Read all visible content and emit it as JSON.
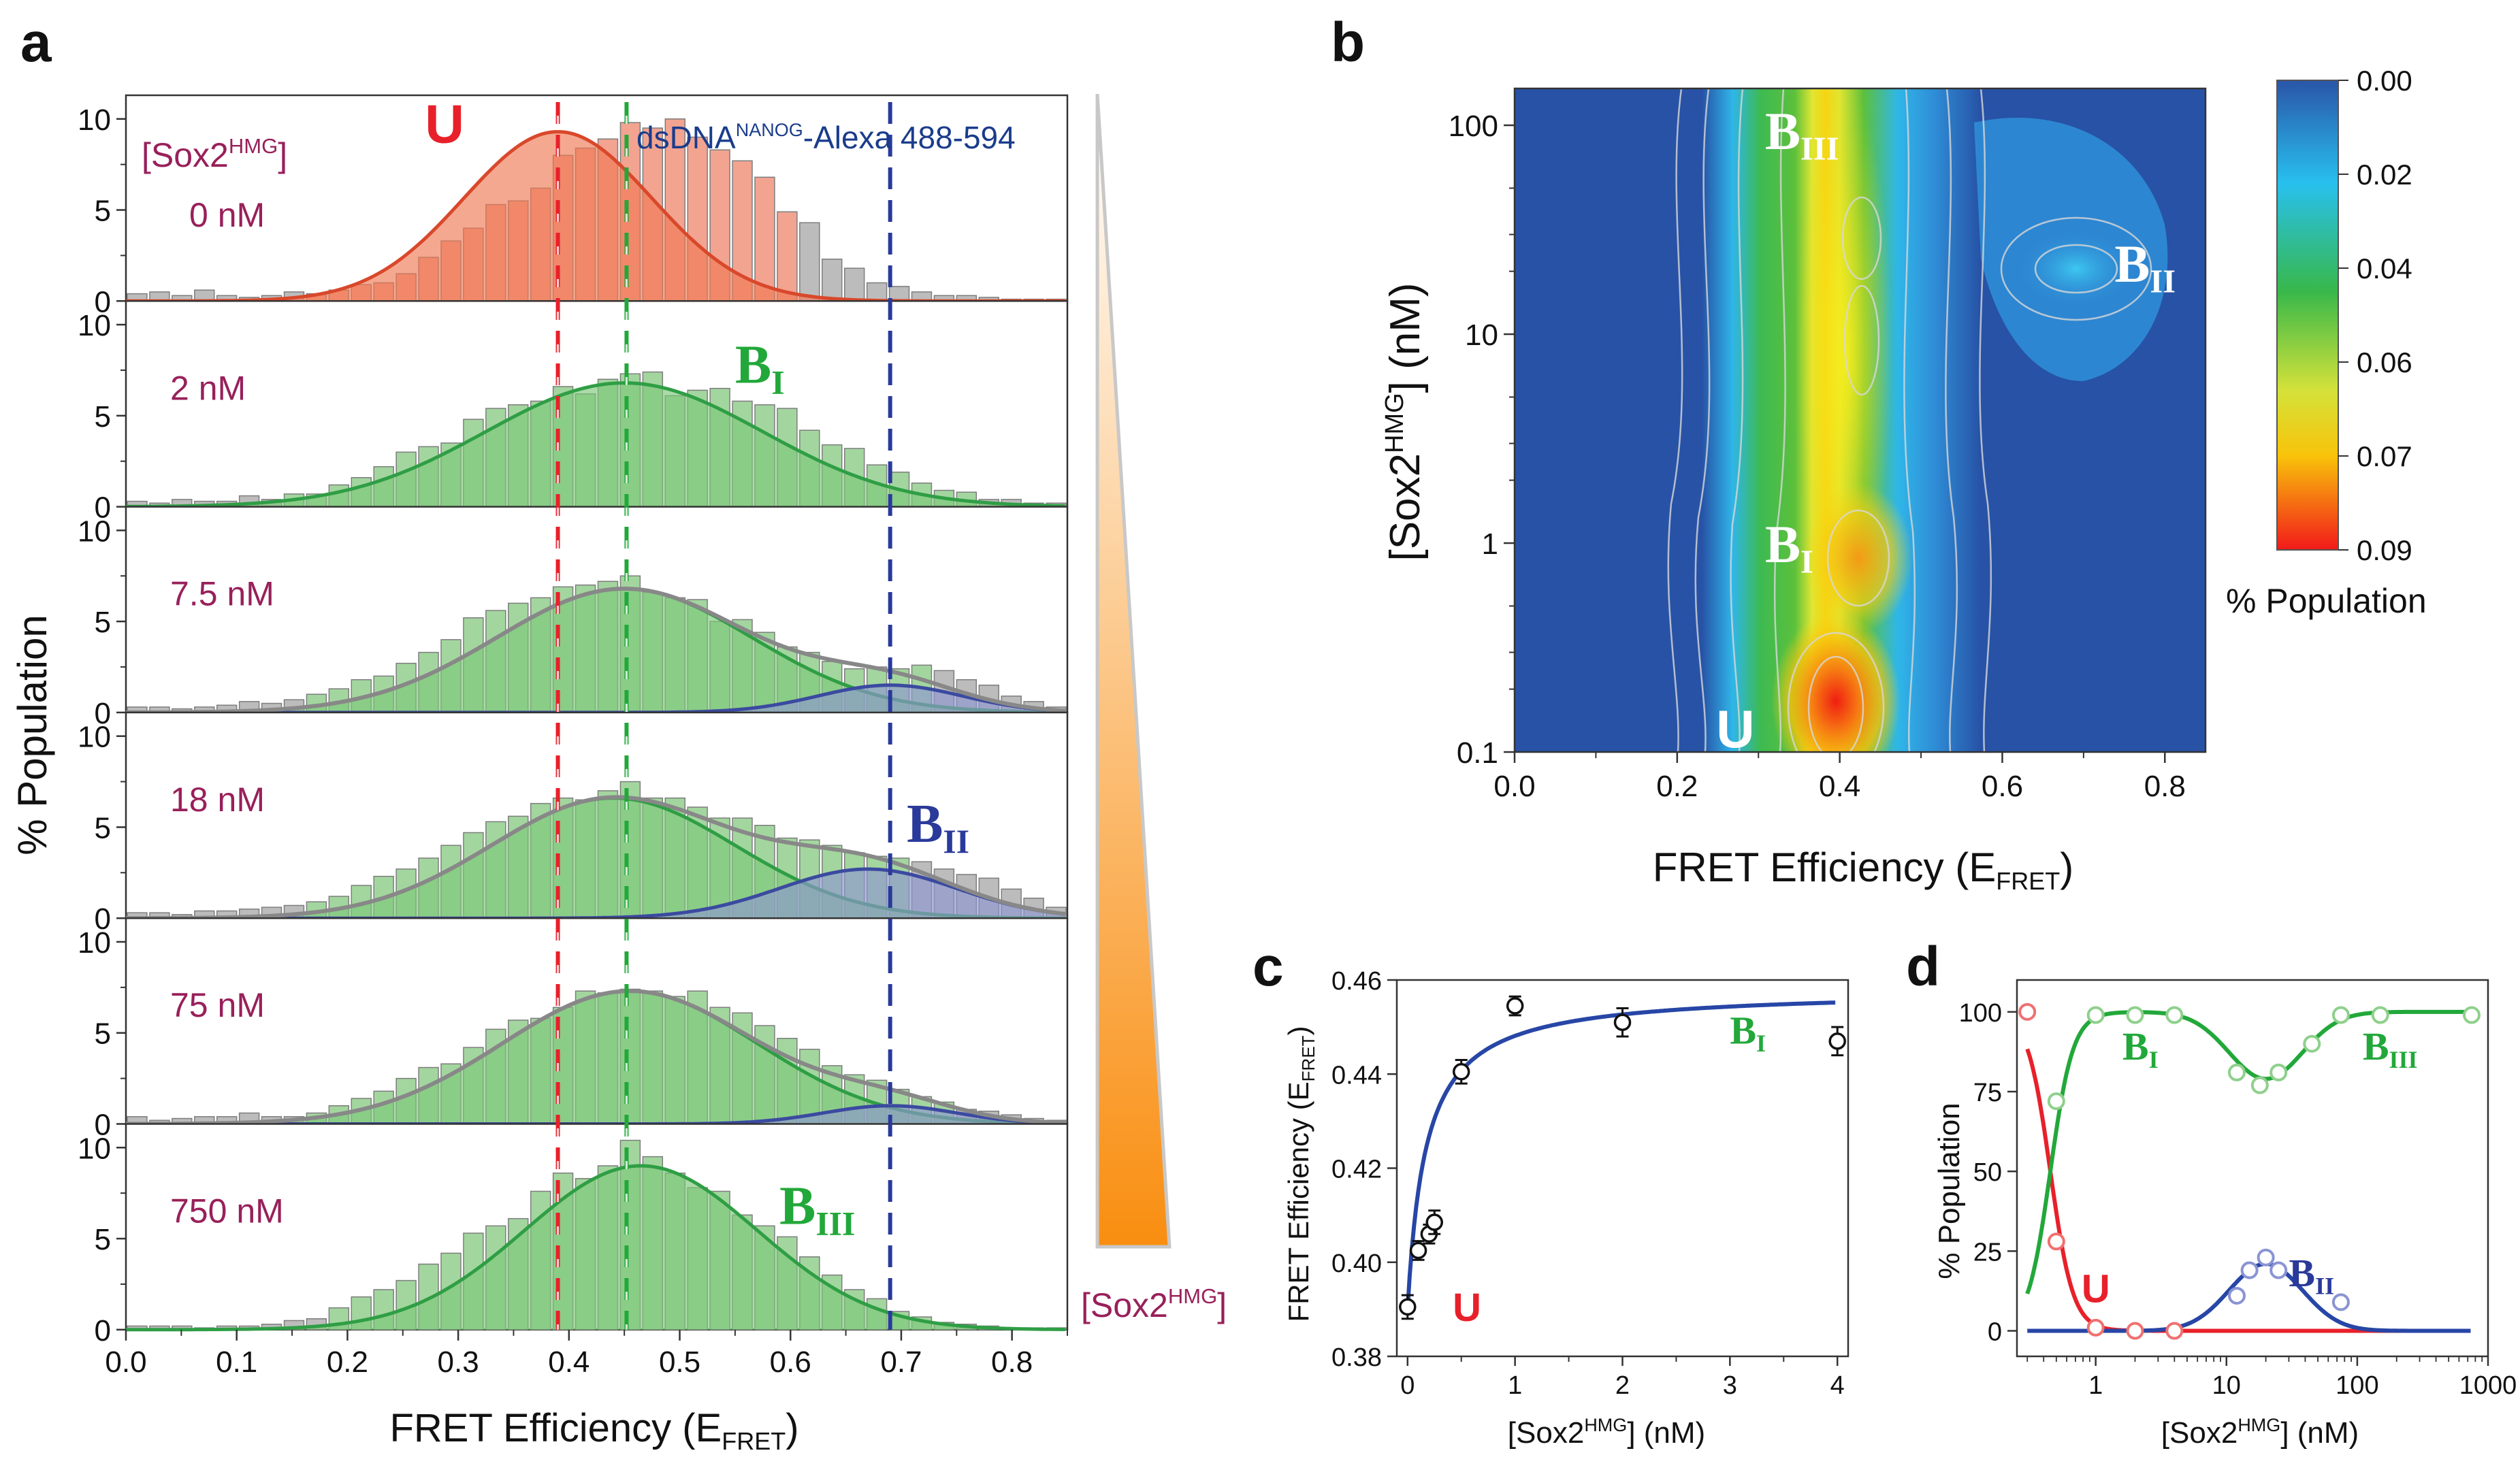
{
  "colors": {
    "u_red": "#e8202a",
    "b1_green": "#22a83a",
    "b2_blue": "#2a3a9a",
    "orange_fill": "#f07a55",
    "green_fill": "#7cc87a",
    "blue_fill": "#8d97d0",
    "gray_bar": "#b9b9b9",
    "dark_magenta": "#98205a",
    "navy": "#1a3c8c",
    "fit_blue": "#2746a6"
  },
  "chart_data": [
    {
      "panel": "a",
      "type": "bar",
      "ylabel": "% Population",
      "xlabel": "FRET Efficiency (E",
      "xlabel_sub": "FRET",
      "xlabel_end": ")",
      "xlim": [
        0.0,
        0.85
      ],
      "ylim": [
        0,
        11
      ],
      "xticks": [
        "0.0",
        "0.1",
        "0.2",
        "0.3",
        "0.4",
        "0.5",
        "0.6",
        "0.7",
        "0.8"
      ],
      "yticks": [
        "0",
        "5",
        "10"
      ],
      "conc_header": "[Sox2",
      "conc_header_sup": "HMG",
      "conc_header_end": "]",
      "dna_label": "dsDNA",
      "dna_label_sup": "NANOG",
      "dna_label_end": "-Alexa 488-594",
      "gradient_label": "[Sox2",
      "gradient_label_sup": "HMG",
      "gradient_label_end": "]",
      "reference_lines": [
        {
          "x": 0.39,
          "color": "u_red"
        },
        {
          "x": 0.452,
          "color": "b1_green"
        },
        {
          "x": 0.69,
          "color": "b2_blue"
        }
      ],
      "subpanels": [
        {
          "concentration": "0 nM",
          "state": "U",
          "state_sub": "",
          "state_color": "u_red",
          "state_x": 0.27,
          "state_y": 8.7,
          "fits": [
            {
              "mu": 0.39,
              "sigma": 0.085,
              "amp": 9.3,
              "kind": "U"
            }
          ],
          "envelope": false,
          "bars": [
            0.4,
            0.5,
            0.3,
            0.6,
            0.3,
            0.2,
            0.3,
            0.5,
            0.4,
            0.6,
            0.9,
            1.0,
            1.5,
            2.4,
            3.3,
            4.0,
            5.3,
            5.5,
            6.2,
            8.0,
            8.4,
            8.9,
            9.8,
            9.5,
            10.0,
            9.0,
            8.3,
            7.7,
            6.8,
            4.9,
            4.3,
            2.3,
            1.8,
            1.0,
            0.8,
            0.5,
            0.3,
            0.3,
            0.2,
            0.1,
            0.1,
            0.1
          ]
        },
        {
          "concentration": "2 nM",
          "state": "B",
          "state_sub": "I",
          "state_color": "b1_green",
          "state_x": 0.55,
          "state_y": 6.8,
          "fits": [
            {
              "mu": 0.45,
              "sigma": 0.125,
              "amp": 6.8,
              "kind": "B1"
            }
          ],
          "envelope": false,
          "bars": [
            0.3,
            0.2,
            0.4,
            0.3,
            0.3,
            0.6,
            0.4,
            0.7,
            0.7,
            1.2,
            1.6,
            2.2,
            3.0,
            3.3,
            3.5,
            4.8,
            5.4,
            5.6,
            5.8,
            6.6,
            6.2,
            7.0,
            7.3,
            7.4,
            6.1,
            6.4,
            6.5,
            5.8,
            5.6,
            5.4,
            4.2,
            3.4,
            3.2,
            2.3,
            1.9,
            1.3,
            0.9,
            0.8,
            0.4,
            0.4,
            0.2,
            0.2
          ]
        },
        {
          "concentration": "7.5 nM",
          "state": "",
          "state_sub": "",
          "state_color": "b1_green",
          "state_x": 0.5,
          "state_y": 6,
          "fits": [
            {
              "mu": 0.45,
              "sigma": 0.115,
              "amp": 6.8,
              "kind": "B1"
            },
            {
              "mu": 0.69,
              "sigma": 0.065,
              "amp": 1.5,
              "kind": "B2"
            }
          ],
          "envelope": true,
          "bars": [
            0.3,
            0.3,
            0.2,
            0.3,
            0.4,
            0.6,
            0.5,
            0.7,
            1.0,
            1.3,
            1.8,
            2.0,
            2.7,
            3.3,
            4.0,
            5.2,
            5.6,
            6.0,
            6.3,
            6.9,
            7.0,
            7.2,
            7.5,
            6.6,
            6.3,
            6.2,
            5.0,
            5.1,
            4.4,
            3.6,
            3.3,
            2.8,
            2.4,
            2.5,
            2.4,
            2.6,
            2.3,
            1.8,
            1.5,
            0.9,
            0.6,
            0.3
          ]
        },
        {
          "concentration": "18 nM",
          "state": "B",
          "state_sub": "II",
          "state_color": "b2_blue",
          "state_x": 0.705,
          "state_y": 4.2,
          "fits": [
            {
              "mu": 0.44,
              "sigma": 0.11,
              "amp": 6.6,
              "kind": "B1"
            },
            {
              "mu": 0.67,
              "sigma": 0.08,
              "amp": 2.7,
              "kind": "B2"
            }
          ],
          "envelope": true,
          "bars": [
            0.3,
            0.3,
            0.2,
            0.4,
            0.4,
            0.5,
            0.6,
            0.7,
            0.9,
            1.2,
            1.8,
            2.3,
            2.7,
            3.3,
            4.0,
            4.7,
            5.3,
            5.6,
            6.3,
            6.6,
            6.5,
            7.0,
            7.5,
            6.6,
            6.6,
            6.1,
            5.5,
            5.5,
            5.1,
            4.4,
            4.3,
            4.0,
            3.6,
            3.4,
            3.3,
            3.1,
            2.7,
            2.4,
            2.2,
            1.6,
            1.1,
            0.6
          ]
        },
        {
          "concentration": "75 nM",
          "state": "",
          "state_sub": "",
          "state_color": "b1_green",
          "state_x": 0.5,
          "state_y": 6,
          "fits": [
            {
              "mu": 0.455,
              "sigma": 0.115,
              "amp": 7.3,
              "kind": "B1"
            },
            {
              "mu": 0.69,
              "sigma": 0.06,
              "amp": 1.0,
              "kind": "B2"
            }
          ],
          "envelope": true,
          "bars": [
            0.4,
            0.2,
            0.3,
            0.4,
            0.4,
            0.6,
            0.4,
            0.4,
            0.6,
            1.0,
            1.4,
            1.8,
            2.5,
            3.1,
            3.3,
            4.2,
            5.2,
            5.7,
            5.8,
            6.4,
            7.3,
            7.2,
            7.4,
            7.3,
            7.0,
            7.3,
            6.4,
            6.1,
            5.4,
            4.7,
            4.1,
            3.2,
            2.7,
            2.4,
            1.9,
            1.5,
            1.2,
            0.8,
            0.7,
            0.5,
            0.3,
            0.2
          ]
        },
        {
          "concentration": "750 nM",
          "state": "B",
          "state_sub": "III",
          "state_color": "b1_green",
          "state_x": 0.59,
          "state_y": 5.8,
          "fits": [
            {
              "mu": 0.465,
              "sigma": 0.105,
              "amp": 9.0,
              "kind": "B1"
            }
          ],
          "envelope": false,
          "bars": [
            0.2,
            0.2,
            0.2,
            0.1,
            0.2,
            0.2,
            0.3,
            0.5,
            0.6,
            1.2,
            1.8,
            2.2,
            2.7,
            3.6,
            4.2,
            5.3,
            5.7,
            6.1,
            7.6,
            8.6,
            8.3,
            9.0,
            10.4,
            9.5,
            8.6,
            7.8,
            7.6,
            6.3,
            5.7,
            5.1,
            4.0,
            3.0,
            2.2,
            1.7,
            1.0,
            0.7,
            0.4,
            0.3,
            0.2,
            0.1,
            0.1,
            0.1
          ]
        }
      ]
    },
    {
      "panel": "b",
      "type": "heatmap",
      "ylabel": "[Sox2",
      "ylabel_sup": "HMG",
      "ylabel_end": "] (nM)",
      "xlabel": "FRET Efficiency (E",
      "xlabel_sub": "FRET",
      "xlabel_end": ")",
      "xlim": [
        0.0,
        0.85
      ],
      "ylim": [
        0.1,
        150
      ],
      "yscale": "log",
      "xticks": [
        "0.0",
        "0.2",
        "0.4",
        "0.6",
        "0.8"
      ],
      "yticks": [
        "0.1",
        "1",
        "10",
        "100"
      ],
      "colorbar_label": "% Population",
      "colorbar_ticks": [
        "0.00",
        "0.02",
        "0.04",
        "0.06",
        "0.07",
        "0.09"
      ],
      "colorbar_range": [
        0.0,
        0.09
      ],
      "state_labels": [
        {
          "text": "B",
          "sub": "III",
          "x": 0.35,
          "y": 95
        },
        {
          "text": "B",
          "sub": "II",
          "x": 0.78,
          "y": 22
        },
        {
          "text": "B",
          "sub": "I",
          "x": 0.35,
          "y": 1.0
        },
        {
          "text": "U",
          "sub": "",
          "x": 0.29,
          "y": 0.13
        }
      ]
    },
    {
      "panel": "c",
      "type": "scatter",
      "ylabel": "FRET Efficiency (E",
      "ylabel_sub": "FRET",
      "ylabel_end": ")",
      "xlabel": "[Sox2",
      "xlabel_sup": "HMG",
      "xlabel_end": "] (nM)",
      "xlim": [
        -0.1,
        4.1
      ],
      "ylim": [
        0.38,
        0.46
      ],
      "xticks": [
        "0",
        "1",
        "2",
        "3",
        "4"
      ],
      "yticks": [
        "0.38",
        "0.40",
        "0.42",
        "0.44",
        "0.46"
      ],
      "points": [
        {
          "x": 0,
          "y": 0.3905,
          "err": 0.0025
        },
        {
          "x": 0.1,
          "y": 0.4025,
          "err": 0.002
        },
        {
          "x": 0.2,
          "y": 0.406,
          "err": 0.002
        },
        {
          "x": 0.25,
          "y": 0.4085,
          "err": 0.0025
        },
        {
          "x": 0.5,
          "y": 0.4405,
          "err": 0.0025
        },
        {
          "x": 1.0,
          "y": 0.4545,
          "err": 0.002
        },
        {
          "x": 2.0,
          "y": 0.451,
          "err": 0.003
        },
        {
          "x": 4.0,
          "y": 0.447,
          "err": 0.003
        }
      ],
      "fit": {
        "base": 0.39,
        "amp": 0.068,
        "kd": 0.17
      },
      "labels": [
        {
          "text": "U",
          "sub": "",
          "color": "u_red",
          "x": 0.42,
          "y": 0.3875
        },
        {
          "text": "B",
          "sub": "I",
          "color": "b1_green",
          "x": 3.0,
          "y": 0.4465
        }
      ]
    },
    {
      "panel": "d",
      "type": "line",
      "ylabel": "% Population",
      "xlabel": "[Sox2",
      "xlabel_sup": "HMG",
      "xlabel_end": "] (nM)",
      "xscale": "log",
      "xlim": [
        0.25,
        1000
      ],
      "ylim": [
        -8,
        110
      ],
      "xticks": [
        "1",
        "10",
        "100",
        "1000"
      ],
      "yticks": [
        "0",
        "25",
        "50",
        "75",
        "100"
      ],
      "series": [
        {
          "name": "U",
          "color": "u_red",
          "points": [
            [
              0.3,
              100
            ],
            [
              0.5,
              28
            ],
            [
              1.0,
              1
            ],
            [
              2.0,
              0
            ],
            [
              4.0,
              0
            ]
          ]
        },
        {
          "name": "B_I/B_III",
          "color": "b1_green",
          "points": [
            [
              0.5,
              72
            ],
            [
              1.0,
              99
            ],
            [
              2.0,
              99
            ],
            [
              4.0,
              99
            ],
            [
              12,
              81
            ],
            [
              18,
              77
            ],
            [
              25,
              81
            ],
            [
              45,
              90
            ],
            [
              75,
              99
            ],
            [
              150,
              99
            ],
            [
              750,
              99
            ]
          ]
        },
        {
          "name": "B_II",
          "color": "b2_blue",
          "points": [
            [
              12,
              11
            ],
            [
              15,
              19
            ],
            [
              20,
              23
            ],
            [
              25,
              19
            ],
            [
              75,
              9
            ]
          ]
        }
      ],
      "labels": [
        {
          "text": "B",
          "sub": "I",
          "color": "b1_green",
          "x": 1.6,
          "y": 85
        },
        {
          "text": "B",
          "sub": "III",
          "color": "b1_green",
          "x": 110,
          "y": 85
        },
        {
          "text": "U",
          "sub": "",
          "color": "u_red",
          "x": 0.78,
          "y": 9
        },
        {
          "text": "B",
          "sub": "II",
          "color": "b2_blue",
          "x": 30,
          "y": 14
        }
      ]
    }
  ],
  "panel_letters": [
    "a",
    "b",
    "c",
    "d"
  ]
}
